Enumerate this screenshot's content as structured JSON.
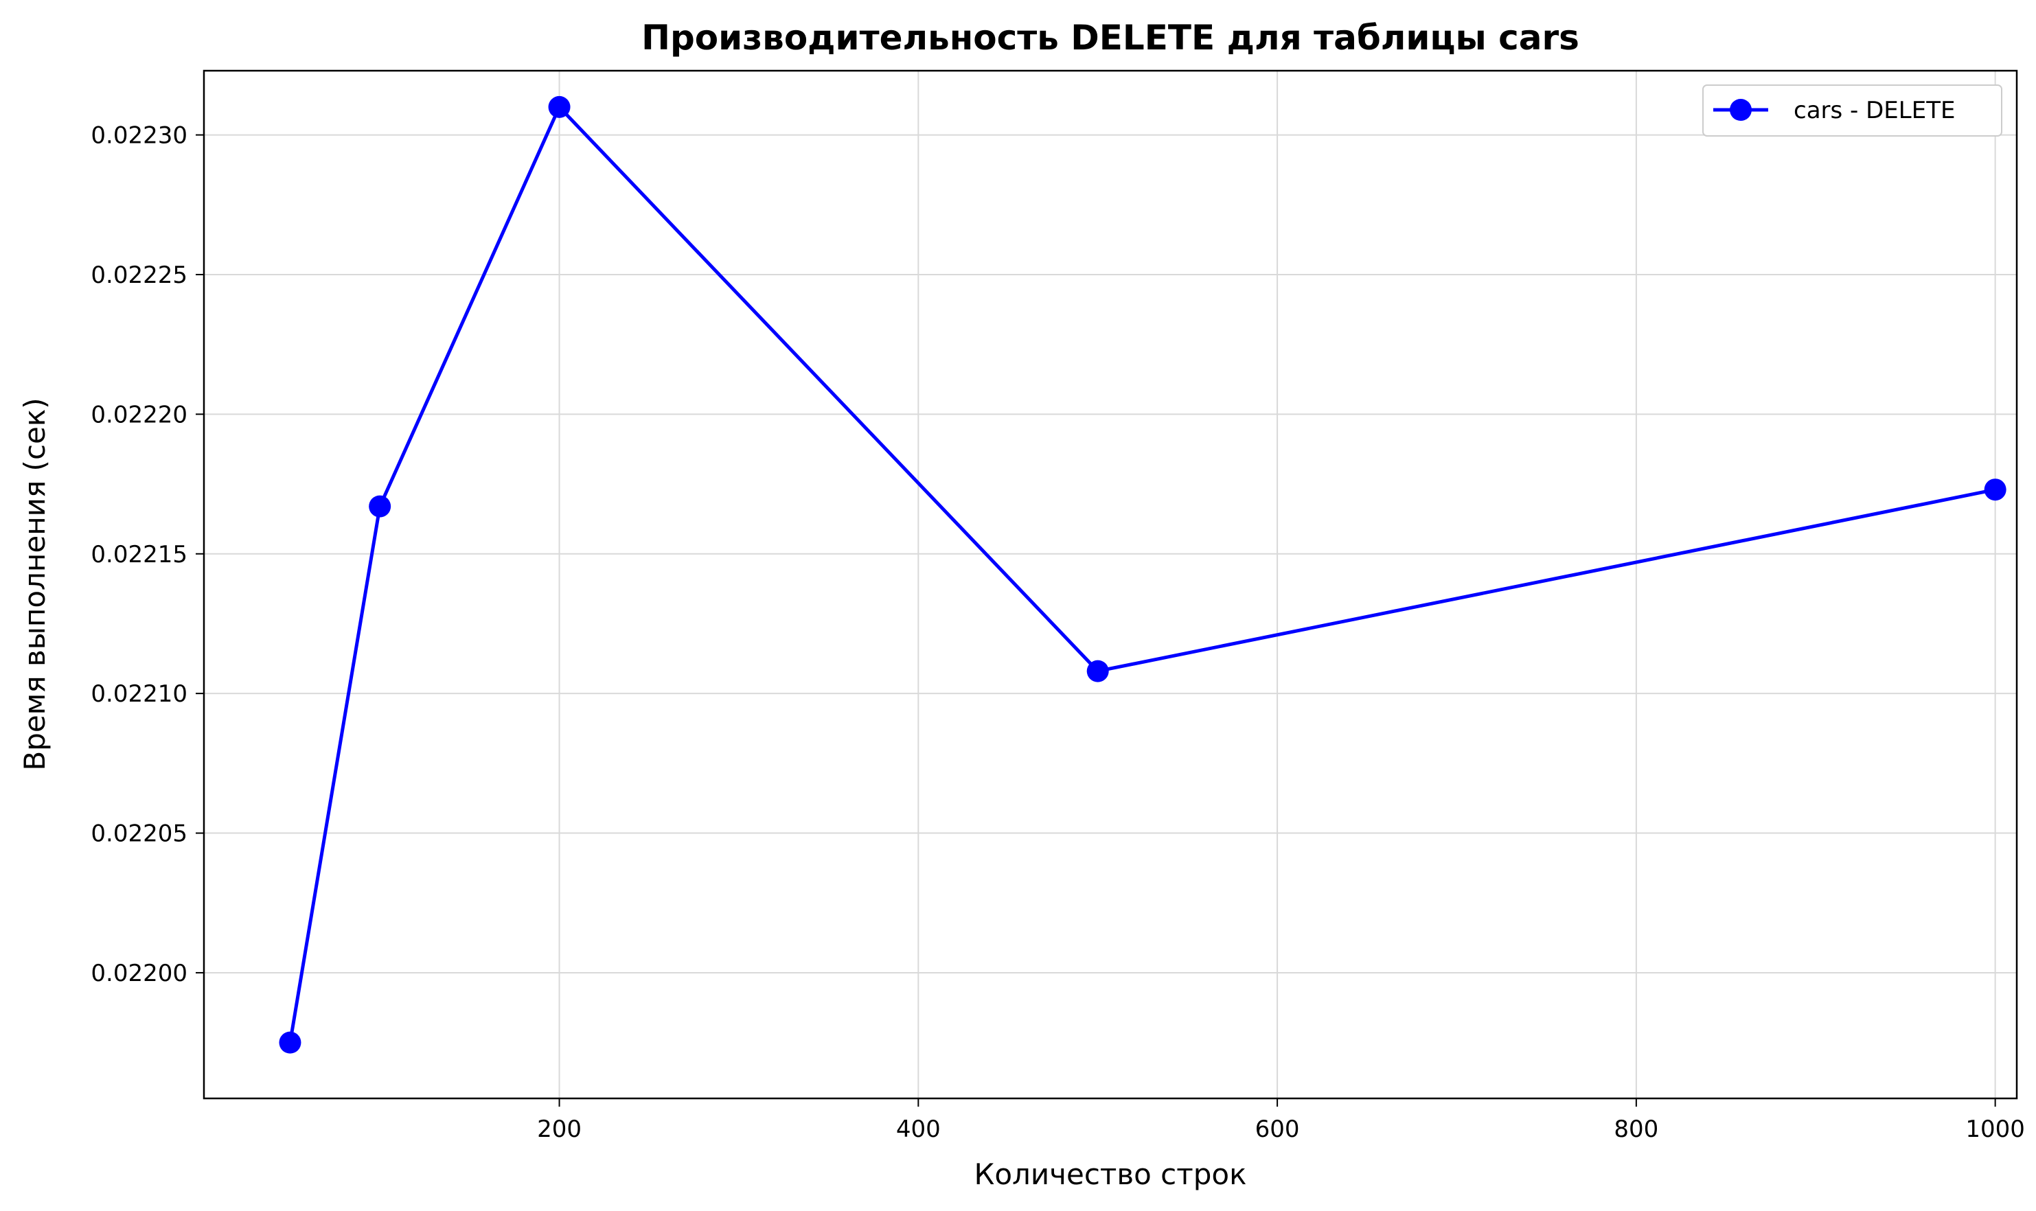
{
  "chart_data": {
    "type": "line",
    "title": "Производительность DELETE для таблицы cars",
    "xlabel": "Количество строк",
    "ylabel": "Время выполнения (сек)",
    "xlim": [
      2,
      1012
    ],
    "ylim": [
      0.021955,
      0.022323
    ],
    "xticks": [
      200,
      400,
      600,
      800,
      1000
    ],
    "xtick_labels": [
      "200",
      "400",
      "600",
      "800",
      "1000"
    ],
    "yticks": [
      0.022,
      0.02205,
      0.0221,
      0.02215,
      0.0222,
      0.02225,
      0.0223
    ],
    "ytick_labels": [
      "0.02200",
      "0.02205",
      "0.02210",
      "0.02215",
      "0.02220",
      "0.02225",
      "0.02230"
    ],
    "grid": true,
    "legend_position": "top-right",
    "series": [
      {
        "name": "cars - DELETE",
        "color": "#0000ff",
        "marker": "circle",
        "x": [
          50,
          100,
          200,
          500,
          1000
        ],
        "y": [
          0.021975,
          0.022167,
          0.02231,
          0.022108,
          0.022173
        ]
      }
    ]
  }
}
